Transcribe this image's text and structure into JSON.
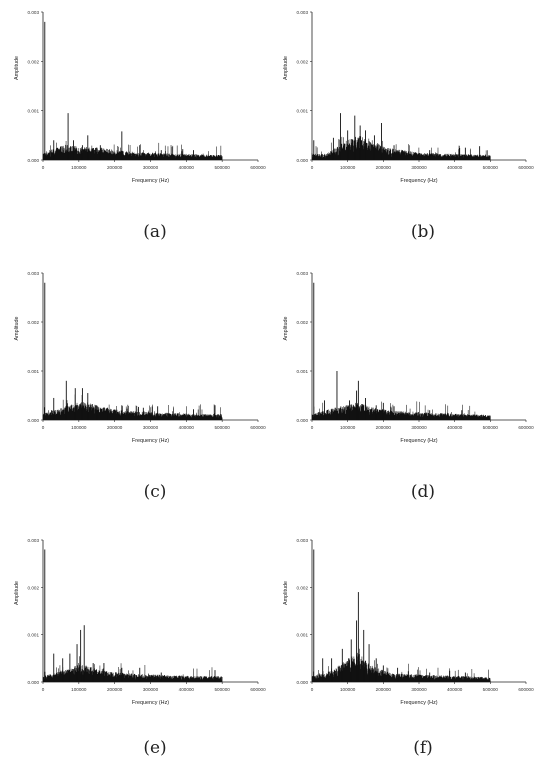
{
  "chart_data": [
    {
      "panel": "(a)",
      "type": "line",
      "xlabel": "Frequency (Hz)",
      "ylabel": "Amplitude",
      "xlim": [
        0,
        600000
      ],
      "ylim": [
        0,
        0.003
      ],
      "x_ticks": [
        0,
        100000,
        200000,
        300000,
        400000,
        500000,
        600000
      ],
      "y_ticks": [
        0.0,
        0.001,
        0.002,
        0.003
      ],
      "x_tick_labels": [
        "0",
        "100000",
        "200000",
        "300000",
        "400000",
        "500000",
        "600000"
      ],
      "y_tick_labels": [
        "0.000",
        "0.001",
        "0.002",
        "0.003"
      ],
      "data_max_x": 500000,
      "baseline": 0.0001,
      "noise": 8e-05,
      "envelope": [
        [
          0,
          0.00012
        ],
        [
          60000,
          0.00025
        ],
        [
          100000,
          0.00022
        ],
        [
          160000,
          0.0002
        ],
        [
          220000,
          0.00015
        ],
        [
          300000,
          0.00012
        ],
        [
          400000,
          0.0001
        ],
        [
          500000,
          8e-05
        ]
      ],
      "peaks": [
        [
          5000,
          0.0028
        ],
        [
          30000,
          0.0004
        ],
        [
          70000,
          0.00095
        ],
        [
          85000,
          0.0004
        ],
        [
          110000,
          0.0003
        ],
        [
          125000,
          0.0005
        ],
        [
          160000,
          0.0003
        ],
        [
          220000,
          0.00058
        ],
        [
          270000,
          0.0003
        ],
        [
          330000,
          0.0002
        ],
        [
          390000,
          0.00022
        ],
        [
          420000,
          0.0002
        ]
      ]
    },
    {
      "panel": "(b)",
      "type": "line",
      "xlabel": "Frequency (Hz)",
      "ylabel": "Amplitude",
      "xlim": [
        0,
        600000
      ],
      "ylim": [
        0,
        0.003
      ],
      "x_ticks": [
        0,
        100000,
        200000,
        300000,
        400000,
        500000,
        600000
      ],
      "y_ticks": [
        0.0,
        0.001,
        0.002,
        0.003
      ],
      "x_tick_labels": [
        "0",
        "100000",
        "200000",
        "300000",
        "400000",
        "500000",
        "600000"
      ],
      "y_tick_labels": [
        "0.000",
        "0.001",
        "0.002",
        "0.003"
      ],
      "data_max_x": 500000,
      "baseline": 0.0001,
      "noise": 8e-05,
      "envelope": [
        [
          0,
          0.0001
        ],
        [
          40000,
          0.0001
        ],
        [
          90000,
          0.0003
        ],
        [
          130000,
          0.0004
        ],
        [
          160000,
          0.00035
        ],
        [
          210000,
          0.0002
        ],
        [
          300000,
          0.00012
        ],
        [
          400000,
          0.0001
        ],
        [
          500000,
          8e-05
        ]
      ],
      "peaks": [
        [
          5000,
          0.0004
        ],
        [
          60000,
          0.00045
        ],
        [
          80000,
          0.00095
        ],
        [
          100000,
          0.0006
        ],
        [
          120000,
          0.0009
        ],
        [
          135000,
          0.0007
        ],
        [
          150000,
          0.0006
        ],
        [
          175000,
          0.0005
        ],
        [
          195000,
          0.00075
        ],
        [
          230000,
          0.0003
        ],
        [
          330000,
          0.0002
        ],
        [
          430000,
          0.00025
        ],
        [
          470000,
          0.00028
        ]
      ]
    },
    {
      "panel": "(c)",
      "type": "line",
      "xlabel": "Frequency (Hz)",
      "ylabel": "Amplitude",
      "xlim": [
        0,
        600000
      ],
      "ylim": [
        0,
        0.003
      ],
      "x_ticks": [
        0,
        100000,
        200000,
        300000,
        400000,
        500000,
        600000
      ],
      "y_ticks": [
        0.0,
        0.001,
        0.002,
        0.003
      ],
      "x_tick_labels": [
        "0",
        "100000",
        "200000",
        "300000",
        "400000",
        "500000",
        "600000"
      ],
      "y_tick_labels": [
        "0.000",
        "0.001",
        "0.002",
        "0.003"
      ],
      "data_max_x": 500000,
      "baseline": 0.0001,
      "noise": 8e-05,
      "envelope": [
        [
          0,
          0.0001
        ],
        [
          50000,
          0.0002
        ],
        [
          90000,
          0.00028
        ],
        [
          120000,
          0.0003
        ],
        [
          160000,
          0.00022
        ],
        [
          230000,
          0.00015
        ],
        [
          330000,
          0.00012
        ],
        [
          430000,
          0.0001
        ],
        [
          500000,
          0.0001
        ]
      ],
      "peaks": [
        [
          5000,
          0.0028
        ],
        [
          30000,
          0.00045
        ],
        [
          65000,
          0.0008
        ],
        [
          90000,
          0.00065
        ],
        [
          110000,
          0.00065
        ],
        [
          125000,
          0.00055
        ],
        [
          150000,
          0.0003
        ],
        [
          180000,
          0.00025
        ],
        [
          220000,
          0.0003
        ],
        [
          280000,
          0.00025
        ],
        [
          320000,
          0.00028
        ],
        [
          420000,
          0.00022
        ],
        [
          480000,
          0.0003
        ]
      ]
    },
    {
      "panel": "(d)",
      "type": "line",
      "xlabel": "Frequency (Hz)",
      "ylabel": "Amplitude",
      "xlim": [
        0,
        600000
      ],
      "ylim": [
        0,
        0.003
      ],
      "x_ticks": [
        0,
        100000,
        200000,
        300000,
        400000,
        500000,
        600000
      ],
      "y_ticks": [
        0.0,
        0.001,
        0.002,
        0.003
      ],
      "x_tick_labels": [
        "0",
        "100000",
        "200000",
        "300000",
        "400000",
        "500000",
        "600000"
      ],
      "y_tick_labels": [
        "0.000",
        "0.001",
        "0.002",
        "0.003"
      ],
      "data_max_x": 500000,
      "baseline": 0.0001,
      "noise": 8e-05,
      "envelope": [
        [
          0,
          0.0001
        ],
        [
          50000,
          0.00018
        ],
        [
          100000,
          0.00025
        ],
        [
          130000,
          0.0003
        ],
        [
          160000,
          0.00022
        ],
        [
          230000,
          0.00015
        ],
        [
          330000,
          0.00012
        ],
        [
          430000,
          0.0001
        ],
        [
          500000,
          8e-05
        ]
      ],
      "peaks": [
        [
          5000,
          0.0028
        ],
        [
          35000,
          0.0004
        ],
        [
          70000,
          0.001
        ],
        [
          105000,
          0.0004
        ],
        [
          125000,
          0.0006
        ],
        [
          130000,
          0.0008
        ],
        [
          150000,
          0.00045
        ],
        [
          180000,
          0.0003
        ],
        [
          200000,
          0.00035
        ],
        [
          230000,
          0.00028
        ],
        [
          330000,
          0.0002
        ],
        [
          420000,
          0.0002
        ]
      ]
    },
    {
      "panel": "(e)",
      "type": "line",
      "xlabel": "Frequency (Hz)",
      "ylabel": "Amplitude",
      "xlim": [
        0,
        600000
      ],
      "ylim": [
        0,
        0.003
      ],
      "x_ticks": [
        0,
        100000,
        200000,
        300000,
        400000,
        500000,
        600000
      ],
      "y_ticks": [
        0.0,
        0.001,
        0.002,
        0.003
      ],
      "x_tick_labels": [
        "0",
        "100000",
        "200000",
        "300000",
        "400000",
        "500000",
        "600000"
      ],
      "y_tick_labels": [
        "0.000",
        "0.001",
        "0.002",
        "0.003"
      ],
      "data_max_x": 500000,
      "baseline": 0.0001,
      "noise": 8e-05,
      "envelope": [
        [
          0,
          0.0001
        ],
        [
          60000,
          0.0002
        ],
        [
          100000,
          0.0003
        ],
        [
          120000,
          0.00028
        ],
        [
          160000,
          0.0002
        ],
        [
          230000,
          0.00015
        ],
        [
          330000,
          0.00012
        ],
        [
          430000,
          0.0001
        ],
        [
          500000,
          0.0001
        ]
      ],
      "peaks": [
        [
          5000,
          0.0028
        ],
        [
          30000,
          0.0006
        ],
        [
          55000,
          0.0005
        ],
        [
          75000,
          0.0006
        ],
        [
          95000,
          0.0008
        ],
        [
          105000,
          0.0011
        ],
        [
          115000,
          0.0012
        ],
        [
          140000,
          0.0004
        ],
        [
          170000,
          0.0004
        ],
        [
          220000,
          0.0003
        ],
        [
          270000,
          0.0003
        ],
        [
          330000,
          0.0002
        ],
        [
          480000,
          0.00025
        ]
      ]
    },
    {
      "panel": "(f)",
      "type": "line",
      "xlabel": "Frequency (Hz)",
      "ylabel": "Amplitude",
      "xlim": [
        0,
        600000
      ],
      "ylim": [
        0,
        0.003
      ],
      "x_ticks": [
        0,
        100000,
        200000,
        300000,
        400000,
        500000,
        600000
      ],
      "y_ticks": [
        0.0,
        0.001,
        0.002,
        0.003
      ],
      "x_tick_labels": [
        "0",
        "100000",
        "200000",
        "300000",
        "400000",
        "500000",
        "600000"
      ],
      "y_tick_labels": [
        "0.000",
        "0.001",
        "0.002",
        "0.003"
      ],
      "data_max_x": 500000,
      "baseline": 0.0001,
      "noise": 8e-05,
      "envelope": [
        [
          0,
          0.0001
        ],
        [
          60000,
          0.0002
        ],
        [
          100000,
          0.0004
        ],
        [
          130000,
          0.0005
        ],
        [
          160000,
          0.0003
        ],
        [
          220000,
          0.00015
        ],
        [
          330000,
          0.00012
        ],
        [
          430000,
          0.0001
        ],
        [
          500000,
          8e-05
        ]
      ],
      "peaks": [
        [
          5000,
          0.0028
        ],
        [
          30000,
          0.0005
        ],
        [
          55000,
          0.0005
        ],
        [
          85000,
          0.0007
        ],
        [
          110000,
          0.0009
        ],
        [
          125000,
          0.0013
        ],
        [
          130000,
          0.0019
        ],
        [
          145000,
          0.0011
        ],
        [
          160000,
          0.0008
        ],
        [
          180000,
          0.0005
        ],
        [
          200000,
          0.00035
        ],
        [
          240000,
          0.0003
        ],
        [
          330000,
          0.0002
        ],
        [
          430000,
          0.0002
        ]
      ]
    }
  ]
}
